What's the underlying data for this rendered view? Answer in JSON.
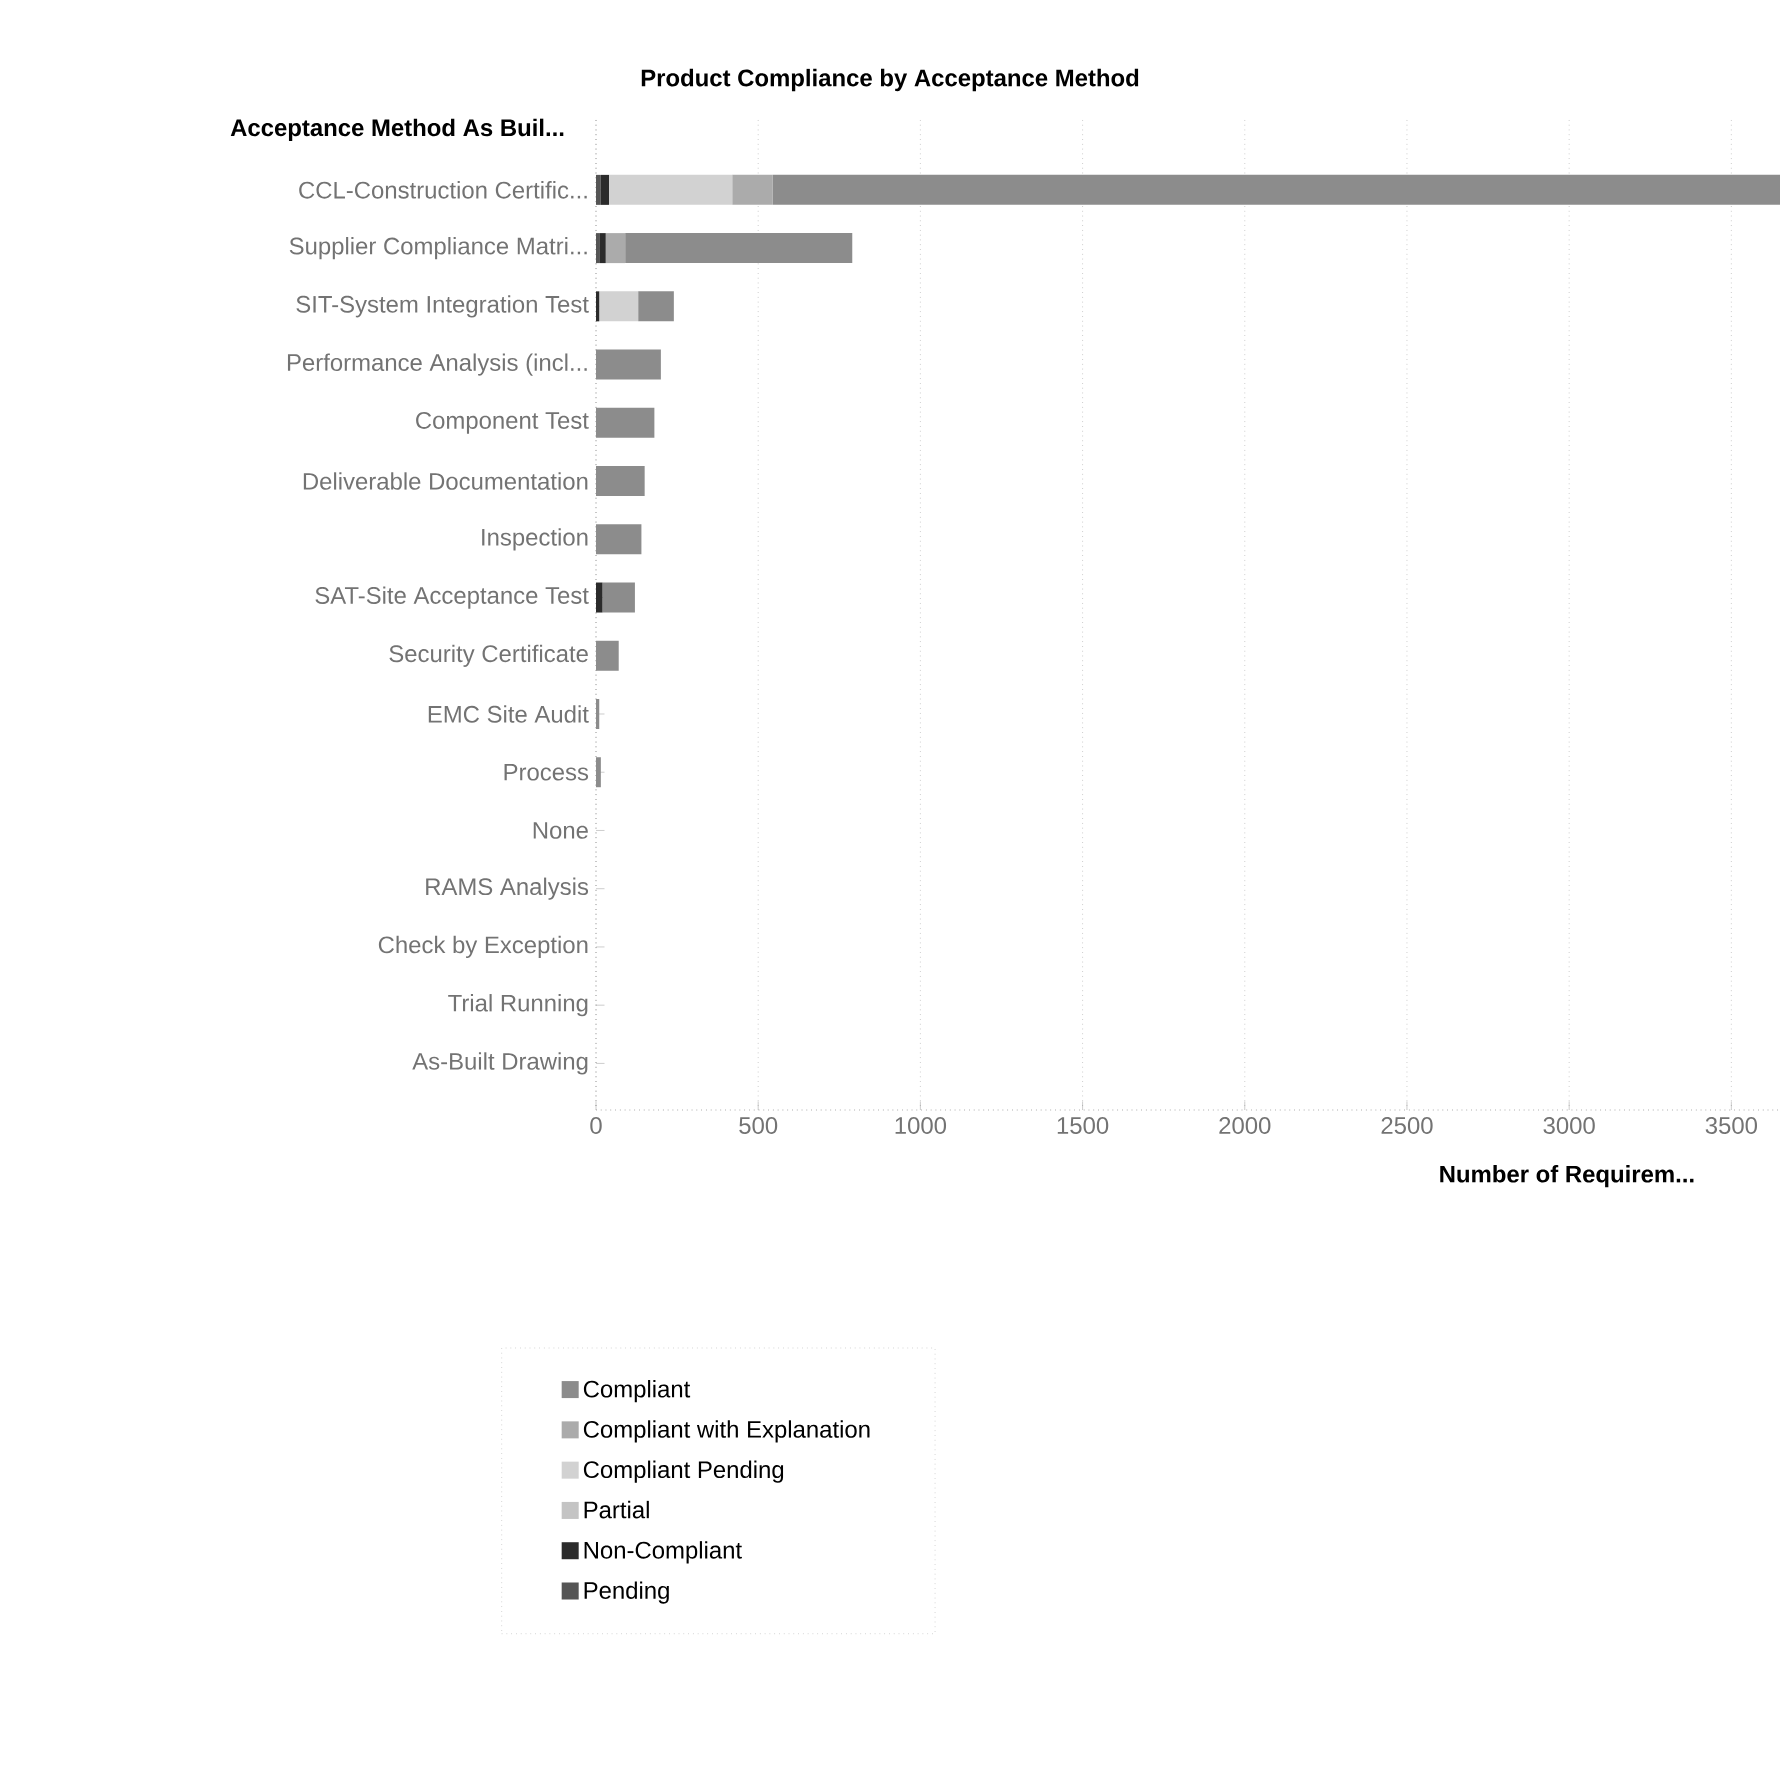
{
  "chart_data": {
    "type": "bar",
    "orientation": "horizontal",
    "stacked": true,
    "title": "Product Compliance by Acceptance Method",
    "xlabel": "Number of Requirem...",
    "ylabel": "Acceptance Method As Buil...",
    "categories": [
      "CCL-Construction Certific...",
      "Supplier Compliance Matri...",
      "SIT-System Integration Test",
      "Performance Analysis (incl...",
      "Component Test",
      "Deliverable Documentation",
      "Inspection",
      "SAT-Site Acceptance Test",
      "Security Certificate",
      "EMC Site Audit",
      "Process",
      "None",
      "RAMS Analysis",
      "Check by Exception",
      "Trial Running",
      "As-Built Drawing"
    ],
    "series": [
      {
        "name": "Pending",
        "color": "#555555",
        "values": [
          15,
          10,
          0,
          0,
          0,
          0,
          0,
          0,
          0,
          0,
          0,
          0,
          0,
          0,
          0,
          0
        ]
      },
      {
        "name": "Non-Compliant",
        "color": "#2b2b2b",
        "values": [
          25,
          20,
          10,
          0,
          0,
          0,
          0,
          20,
          0,
          0,
          0,
          0,
          0,
          0,
          0,
          0
        ]
      },
      {
        "name": "Partial",
        "color": "#c4c4c4",
        "values": [
          0,
          0,
          0,
          0,
          0,
          0,
          0,
          0,
          0,
          0,
          0,
          0,
          0,
          0,
          0,
          0
        ]
      },
      {
        "name": "Compliant Pending",
        "color": "#d2d2d2",
        "values": [
          380,
          0,
          120,
          0,
          0,
          0,
          0,
          0,
          0,
          0,
          0,
          0,
          0,
          0,
          0,
          0
        ]
      },
      {
        "name": "Compliant with Explanation",
        "color": "#ababab",
        "values": [
          125,
          60,
          0,
          0,
          0,
          0,
          0,
          0,
          0,
          0,
          0,
          0,
          0,
          0,
          0,
          0
        ]
      },
      {
        "name": "Compliant",
        "color": "#8c8c8c",
        "values": [
          3105,
          700,
          110,
          200,
          180,
          150,
          140,
          100,
          70,
          10,
          15,
          0,
          0,
          0,
          0,
          0
        ]
      }
    ],
    "xlim": [
      0,
      3650
    ],
    "xticks": [
      0,
      500,
      1000,
      1500,
      2000,
      2500,
      3000,
      3500
    ],
    "grid": "x",
    "legend": "bottom"
  }
}
